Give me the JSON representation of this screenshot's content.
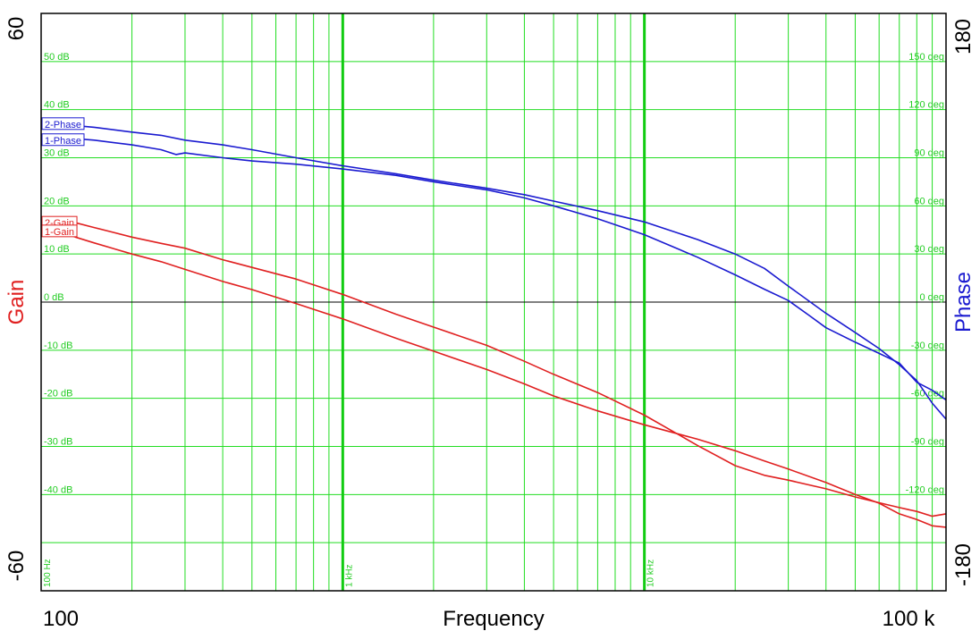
{
  "chart_data": {
    "type": "line",
    "xlabel": "Frequency",
    "x_scale": "log",
    "xlim": [
      100,
      100000
    ],
    "x_end_labels": [
      "100",
      "100 k"
    ],
    "x_decade_labels": [
      {
        "f": 100,
        "label": "100 Hz"
      },
      {
        "f": 1000,
        "label": "1 kHz"
      },
      {
        "f": 10000,
        "label": "10 kHz"
      }
    ],
    "left_axis": {
      "label": "Gain",
      "ylim": [
        -60,
        60
      ],
      "end_labels": [
        "60",
        "-60"
      ],
      "gridlines": [
        {
          "value": 50,
          "label": "50 dB"
        },
        {
          "value": 40,
          "label": "40 dB"
        },
        {
          "value": 30,
          "label": "30 dB"
        },
        {
          "value": 20,
          "label": "20 dB"
        },
        {
          "value": 10,
          "label": "10 dB"
        },
        {
          "value": 0,
          "label": "0 dB"
        },
        {
          "value": -10,
          "label": "-10 dB"
        },
        {
          "value": -20,
          "label": "-20 dB"
        },
        {
          "value": -30,
          "label": "-30 dB"
        },
        {
          "value": -40,
          "label": "-40 dB"
        },
        {
          "value": -50,
          "label": ""
        }
      ]
    },
    "right_axis": {
      "label": "Phase",
      "ylim": [
        -180,
        180
      ],
      "end_labels": [
        "180",
        "-180"
      ],
      "tick_labels": [
        {
          "value": 150,
          "label": "150 deg"
        },
        {
          "value": 120,
          "label": "120 deg"
        },
        {
          "value": 90,
          "label": "90 deg"
        },
        {
          "value": 60,
          "label": "60 deg"
        },
        {
          "value": 30,
          "label": "30 deg"
        },
        {
          "value": 0,
          "label": "0 deg"
        },
        {
          "value": -30,
          "label": "-30 deg"
        },
        {
          "value": -60,
          "label": "-60 deg"
        },
        {
          "value": -90,
          "label": "-90 deg"
        },
        {
          "value": -120,
          "label": "-120 deg"
        }
      ]
    },
    "grid": true,
    "colors": {
      "gain": "#e02020",
      "phase": "#1a1ad0",
      "grid": "#22dd22",
      "grid_major": "#11cc11"
    },
    "series": [
      {
        "name": "2-Phase",
        "axis": "phase",
        "color": "#1a1ad0",
        "x": [
          100,
          112,
          130,
          150,
          200,
          250,
          300,
          400,
          500,
          700,
          1000,
          1500,
          2000,
          3000,
          4000,
          5000,
          7000,
          10000,
          15000,
          20000,
          25000,
          30000,
          40000,
          50000,
          60000,
          70000,
          80000,
          90000,
          100000
        ],
        "y": [
          108,
          112,
          110,
          109,
          106,
          104,
          101,
          98,
          95,
          90,
          85,
          80,
          76,
          71,
          67,
          63,
          57,
          50,
          39,
          30,
          21,
          10,
          -7,
          -19,
          -29,
          -39,
          -49,
          -63,
          -73
        ]
      },
      {
        "name": "1-Phase",
        "axis": "phase",
        "color": "#1a1ad0",
        "x": [
          100,
          110,
          150,
          200,
          250,
          280,
          300,
          400,
          500,
          700,
          1000,
          1500,
          2000,
          3000,
          4000,
          5000,
          7000,
          10000,
          15000,
          20000,
          25000,
          30000,
          35000,
          40000,
          50000,
          60000,
          70000,
          80000,
          90000,
          100000
        ],
        "y": [
          103,
          103,
          101,
          98,
          95,
          92,
          93,
          90,
          88,
          86,
          83,
          79,
          75,
          70,
          65,
          60,
          52,
          42,
          28,
          17,
          8,
          1,
          -8,
          -16,
          -25,
          -32,
          -38,
          -50,
          -55,
          -61
        ]
      },
      {
        "name": "2-Gain",
        "axis": "gain",
        "color": "#e02020",
        "x": [
          100,
          130,
          150,
          200,
          250,
          300,
          400,
          500,
          700,
          1000,
          1500,
          2000,
          3000,
          4000,
          5000,
          7000,
          10000,
          15000,
          20000,
          25000,
          30000,
          40000,
          50000,
          60000,
          70000,
          80000,
          90000,
          100000
        ],
        "y": [
          17.5,
          16.5,
          15.5,
          13.5,
          12.2,
          11.2,
          8.8,
          7.2,
          4.8,
          1.6,
          -2.5,
          -5.2,
          -9,
          -12.3,
          -15,
          -18.8,
          -23.5,
          -29.8,
          -34,
          -36,
          -37,
          -38.8,
          -40.5,
          -41.7,
          -42.7,
          -43.5,
          -44.5,
          -44
        ]
      },
      {
        "name": "1-Gain",
        "axis": "gain",
        "color": "#e02020",
        "x": [
          100,
          130,
          150,
          200,
          250,
          300,
          400,
          500,
          700,
          1000,
          1500,
          2000,
          3000,
          4000,
          5000,
          7000,
          10000,
          15000,
          20000,
          25000,
          30000,
          40000,
          50000,
          60000,
          70000,
          80000,
          90000,
          100000
        ],
        "y": [
          16,
          13.5,
          12.3,
          10,
          8.4,
          6.8,
          4.3,
          2.6,
          -0.3,
          -3.5,
          -7.5,
          -10.2,
          -14,
          -17,
          -19.5,
          -22.6,
          -25.5,
          -28.5,
          -30.9,
          -33,
          -34.7,
          -37.5,
          -40,
          -41.8,
          -44,
          -45.2,
          -46.5,
          -46.8
        ]
      }
    ],
    "trace_labels": [
      {
        "name": "2-Phase",
        "axis": "phase",
        "value": 111
      },
      {
        "name": "1-Phase",
        "axis": "phase",
        "value": 101
      },
      {
        "name": "2-Gain",
        "axis": "gain",
        "value": 16.5
      },
      {
        "name": "1-Gain",
        "axis": "gain",
        "value": 14.7
      }
    ]
  }
}
